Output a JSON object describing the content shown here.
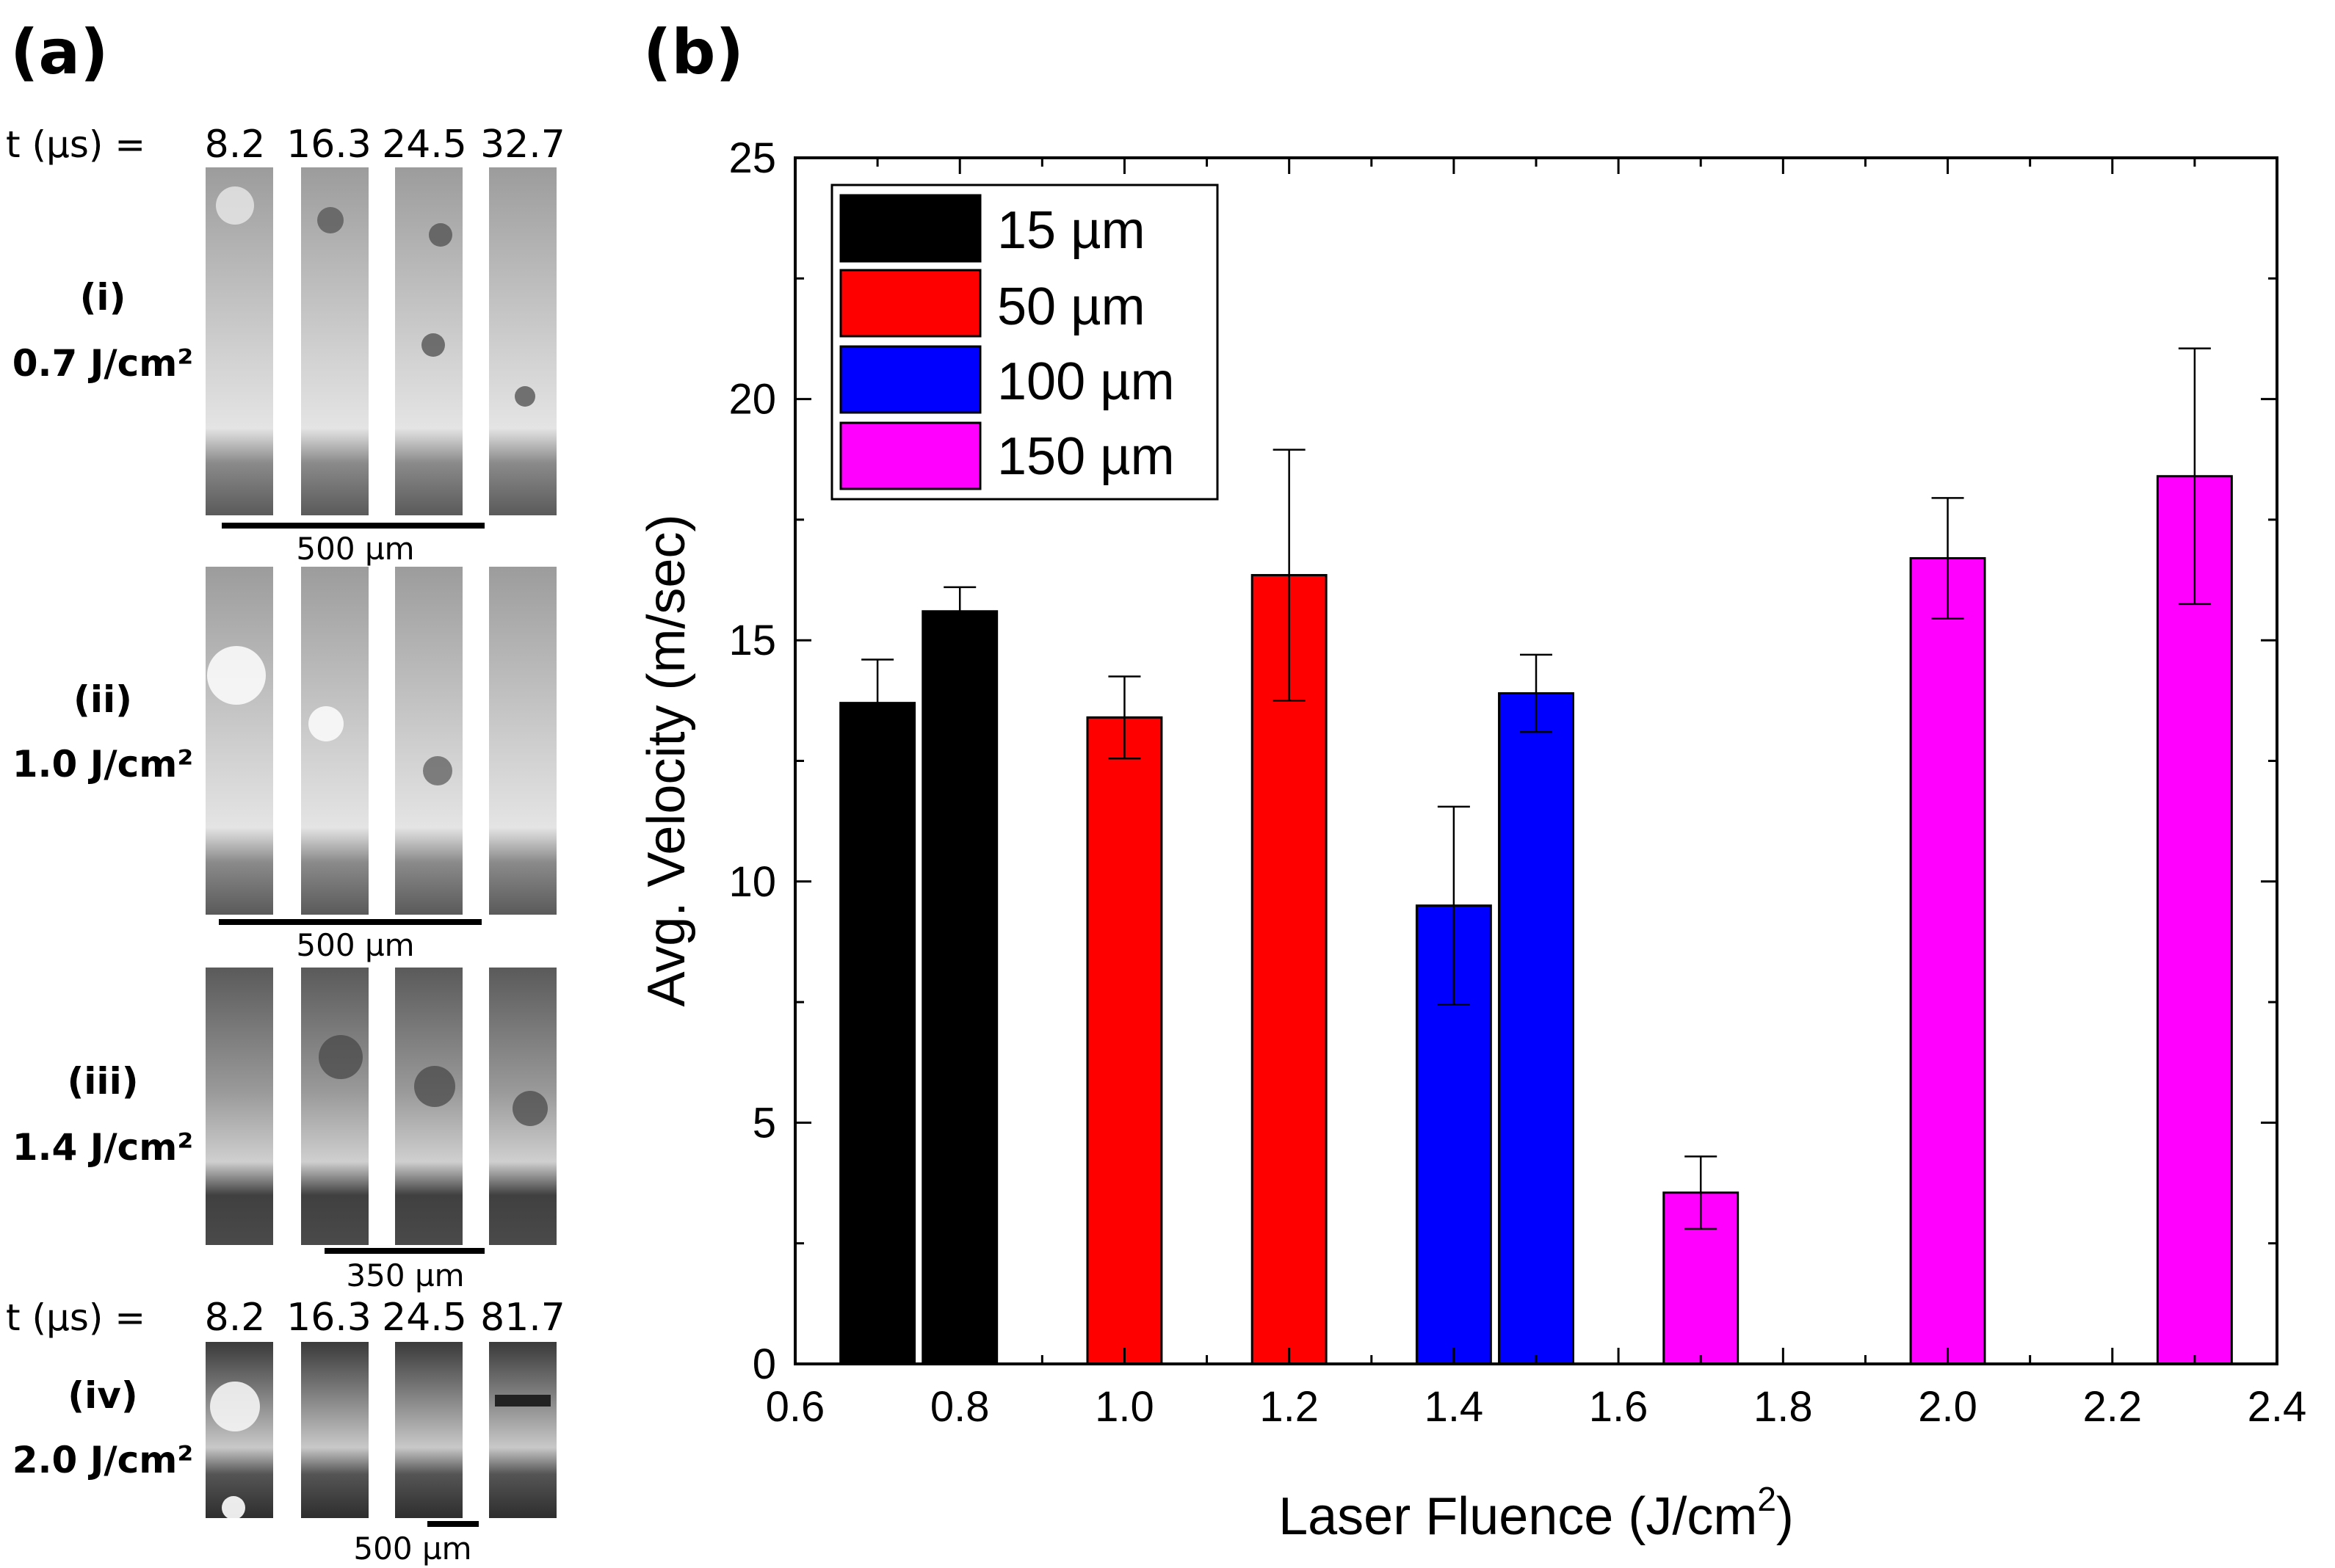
{
  "panel_a": {
    "panel_label": "(a)",
    "time_prefix": "t (µs) =",
    "time_top": [
      "8.2",
      "16.3",
      "24.5",
      "32.7"
    ],
    "time_bottom": [
      "8.2",
      "16.3",
      "24.5",
      "81.7"
    ],
    "rows": [
      {
        "roman": "(i)",
        "fluence": "0.7 J/cm²",
        "scale": "500 µm"
      },
      {
        "roman": "(ii)",
        "fluence": "1.0 J/cm²",
        "scale": "500 µm"
      },
      {
        "roman": "(iii)",
        "fluence": "1.4 J/cm²",
        "scale": "350 µm"
      },
      {
        "roman": "(iv)",
        "fluence": "2.0 J/cm²",
        "scale": "500 µm"
      }
    ]
  },
  "chart_data": {
    "panel_label": "(b)",
    "type": "bar",
    "xlabel": "Laser Fluence (J/cm",
    "xlabel_sup": "2",
    "xlabel_close": ")",
    "ylabel": "Avg. Velocity (m/sec)",
    "xlim": [
      0.6,
      2.4
    ],
    "ylim": [
      0,
      25
    ],
    "xticks": [
      0.6,
      0.8,
      1.0,
      1.2,
      1.4,
      1.6,
      1.8,
      2.0,
      2.2,
      2.4
    ],
    "xtick_labels": [
      "0.6",
      "0.8",
      "1.0",
      "1.2",
      "1.4",
      "1.6",
      "1.8",
      "2.0",
      "2.2",
      "2.4"
    ],
    "yticks": [
      0,
      5,
      10,
      15,
      20,
      25
    ],
    "ytick_labels": [
      "0",
      "5",
      "10",
      "15",
      "20",
      "25"
    ],
    "bar_width": 0.09,
    "colors": {
      "15": "#000000",
      "50": "#ff0000",
      "100": "#0000ff",
      "150": "#ff00ff"
    },
    "legend": [
      {
        "label": "15 µm",
        "color": "#000000"
      },
      {
        "label": "50 µm",
        "color": "#ff0000"
      },
      {
        "label": "100 µm",
        "color": "#0000ff"
      },
      {
        "label": "150 µm",
        "color": "#ff00ff"
      }
    ],
    "series": [
      {
        "name": "15 µm",
        "color": "#000000",
        "x": [
          0.7,
          0.8
        ],
        "values": [
          13.7,
          15.6
        ],
        "err": [
          0.9,
          0.5
        ]
      },
      {
        "name": "50 µm",
        "color": "#ff0000",
        "x": [
          1.0,
          1.2
        ],
        "values": [
          13.4,
          16.35
        ],
        "err": [
          0.85,
          2.6
        ]
      },
      {
        "name": "100 µm",
        "color": "#0000ff",
        "x": [
          1.4,
          1.5
        ],
        "values": [
          9.5,
          13.9
        ],
        "err": [
          2.05,
          0.8
        ]
      },
      {
        "name": "150 µm",
        "color": "#ff00ff",
        "x": [
          1.7,
          2.0,
          2.3
        ],
        "values": [
          3.55,
          16.7,
          18.4
        ],
        "err": [
          0.75,
          1.25,
          2.65
        ]
      }
    ]
  }
}
